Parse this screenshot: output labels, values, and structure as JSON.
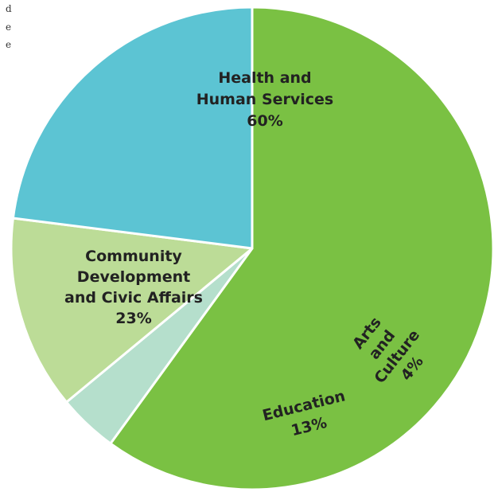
{
  "corner_fragments": [
    "d",
    "e",
    "e"
  ],
  "chart_data": {
    "type": "pie",
    "title": "",
    "slices": [
      {
        "label_lines": [
          "Health and",
          "Human Services"
        ],
        "percent_label": "60%",
        "value": 60,
        "color": "#7ac143"
      },
      {
        "label_lines": [
          "Arts",
          "and",
          "Culture"
        ],
        "percent_label": "4%",
        "value": 4,
        "color": "#b5dfcc"
      },
      {
        "label_lines": [
          "Education"
        ],
        "percent_label": "13%",
        "value": 13,
        "color": "#bcdc97"
      },
      {
        "label_lines": [
          "Community",
          "Development",
          "and Civic Affairs"
        ],
        "percent_label": "23%",
        "value": 23,
        "color": "#5cc4d3"
      }
    ],
    "legend": "none",
    "start_angle_deg": -90
  }
}
